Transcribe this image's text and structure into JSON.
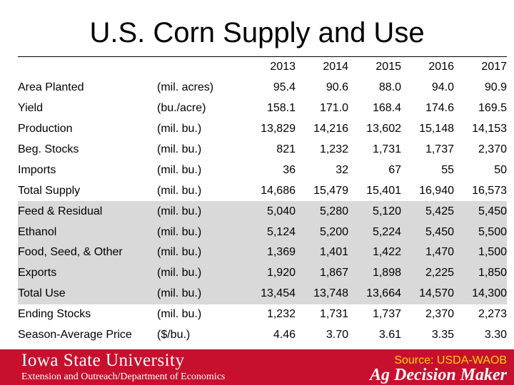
{
  "title": "U.S. Corn Supply and Use",
  "columns": [
    "2013",
    "2014",
    "2015",
    "2016",
    "2017"
  ],
  "rows": [
    {
      "label": "Area Planted",
      "unit": "(mil. acres)",
      "values": [
        "95.4",
        "90.6",
        "88.0",
        "94.0",
        "90.9"
      ],
      "shaded": false
    },
    {
      "label": "Yield",
      "unit": "(bu./acre)",
      "values": [
        "158.1",
        "171.0",
        "168.4",
        "174.6",
        "169.5"
      ],
      "shaded": false
    },
    {
      "label": "Production",
      "unit": "(mil. bu.)",
      "values": [
        "13,829",
        "14,216",
        "13,602",
        "15,148",
        "14,153"
      ],
      "shaded": false
    },
    {
      "label": "Beg. Stocks",
      "unit": "(mil. bu.)",
      "values": [
        "821",
        "1,232",
        "1,731",
        "1,737",
        "2,370"
      ],
      "shaded": false
    },
    {
      "label": "Imports",
      "unit": "(mil. bu.)",
      "values": [
        "36",
        "32",
        "67",
        "55",
        "50"
      ],
      "shaded": false
    },
    {
      "label": "Total Supply",
      "unit": "(mil. bu.)",
      "values": [
        "14,686",
        "15,479",
        "15,401",
        "16,940",
        "16,573"
      ],
      "shaded": false
    },
    {
      "label": "Feed & Residual",
      "unit": "(mil. bu.)",
      "values": [
        "5,040",
        "5,280",
        "5,120",
        "5,425",
        "5,450"
      ],
      "shaded": true
    },
    {
      "label": "Ethanol",
      "unit": "(mil. bu.)",
      "values": [
        "5,124",
        "5,200",
        "5,224",
        "5,450",
        "5,500"
      ],
      "shaded": true
    },
    {
      "label": "Food, Seed, & Other",
      "unit": "(mil. bu.)",
      "values": [
        "1,369",
        "1,401",
        "1,422",
        "1,470",
        "1,500"
      ],
      "shaded": true
    },
    {
      "label": "Exports",
      "unit": "(mil. bu.)",
      "values": [
        "1,920",
        "1,867",
        "1,898",
        "2,225",
        "1,850"
      ],
      "shaded": true
    },
    {
      "label": "Total Use",
      "unit": "(mil. bu.)",
      "values": [
        "13,454",
        "13,748",
        "13,664",
        "14,570",
        "14,300"
      ],
      "shaded": true
    },
    {
      "label": "Ending Stocks",
      "unit": "(mil. bu.)",
      "values": [
        "1,232",
        "1,731",
        "1,737",
        "2,370",
        "2,273"
      ],
      "shaded": false
    },
    {
      "label": "Season-Average Price",
      "unit": "($/bu.)",
      "values": [
        "4.46",
        "3.70",
        "3.61",
        "3.35",
        "3.30"
      ],
      "shaded": false
    }
  ],
  "footer": {
    "university": "Iowa State University",
    "department": "Extension and Outreach/Department of Economics",
    "source": "Source: USDA-WAOB",
    "brand": "Ag Decision Maker"
  },
  "colors": {
    "footer_bg": "#c8102e",
    "shade": "#d9d9d9",
    "source_text": "#ffd700"
  }
}
